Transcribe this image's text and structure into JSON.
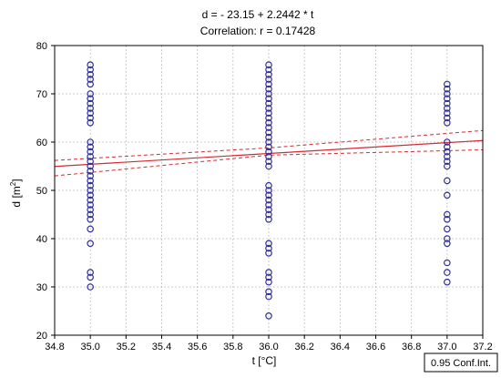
{
  "chart_data": {
    "type": "scatter",
    "title": "d = - 23.15 + 2.2442 * t",
    "subtitle": "Correlation: r = 0.17428",
    "xlabel": "t [°C]",
    "ylabel_main": "d [m",
    "ylabel_sup": "2",
    "ylabel_end": "]",
    "xlim": [
      34.8,
      37.2
    ],
    "ylim": [
      20,
      80
    ],
    "x_ticks": [
      "34.8",
      "35.0",
      "35.2",
      "35.4",
      "35.6",
      "35.8",
      "36.0",
      "36.2",
      "36.4",
      "36.6",
      "36.8",
      "37.0",
      "37.2"
    ],
    "y_ticks": [
      "20",
      "30",
      "40",
      "50",
      "60",
      "70",
      "80"
    ],
    "grid": true,
    "legend": "0.95 Conf.Int.",
    "regression": {
      "intercept": -23.15,
      "slope": 2.2442
    },
    "confidence_band": {
      "x": [
        34.8,
        36.0,
        37.2
      ],
      "lower": [
        53.0,
        57.3,
        58.4
      ],
      "upper": [
        56.2,
        58.8,
        62.4
      ]
    },
    "series": [
      {
        "x": 35.0,
        "y": [
          76,
          75,
          74,
          73,
          72,
          70,
          69,
          68,
          67,
          66,
          65,
          64,
          60,
          59,
          58,
          57,
          56,
          55,
          54,
          53,
          52,
          51,
          50,
          49,
          48,
          47,
          46,
          45,
          44,
          42,
          39,
          33,
          32,
          30
        ]
      },
      {
        "x": 36.0,
        "y": [
          76,
          75,
          74,
          73,
          72,
          71,
          70,
          69,
          68,
          67,
          66,
          65,
          64,
          63,
          62,
          61,
          60,
          59,
          58,
          57,
          56,
          55,
          51,
          50,
          49,
          48,
          47,
          46,
          45,
          44,
          39,
          38,
          37,
          33,
          32,
          31,
          29,
          28,
          24
        ]
      },
      {
        "x": 37.0,
        "y": [
          72,
          71,
          70,
          69,
          68,
          67,
          66,
          65,
          64,
          60,
          59,
          58,
          57,
          56,
          55,
          52,
          49,
          45,
          44,
          42,
          40,
          39,
          35,
          33,
          31
        ]
      }
    ],
    "colors": {
      "points": "#2e2e9a",
      "line": "#d42a32",
      "grid": "#bdbdbd"
    }
  }
}
